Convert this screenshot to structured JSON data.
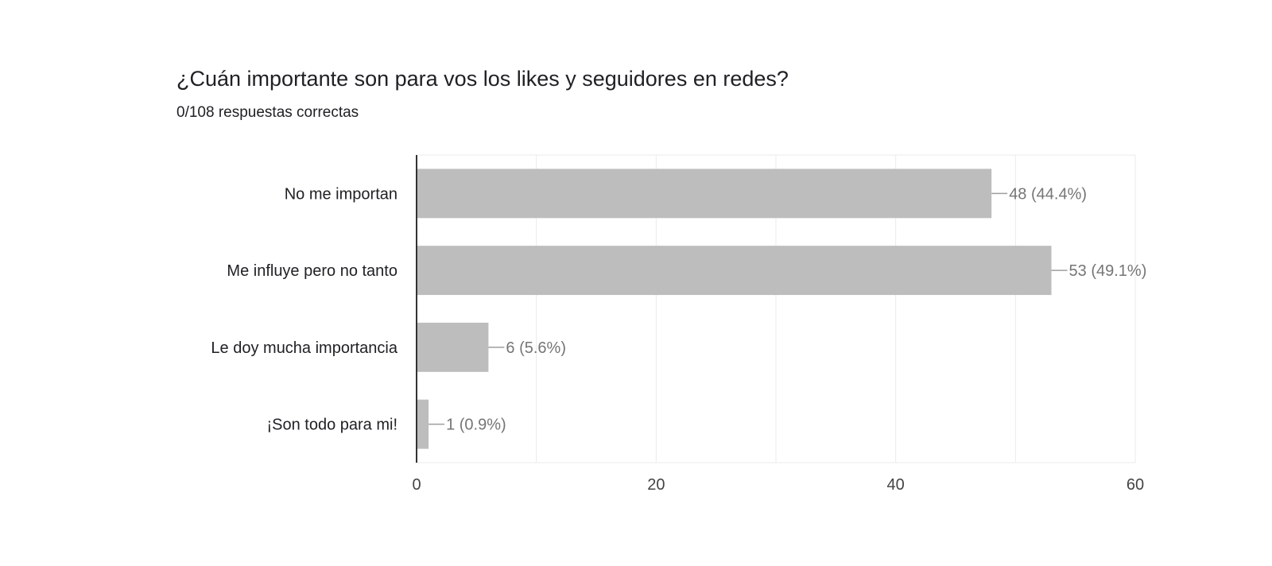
{
  "chart_data": {
    "type": "bar",
    "orientation": "horizontal",
    "title": "¿Cuán importante son para vos los likes y seguidores en redes?",
    "subtitle": "0/108 respuestas correctas",
    "categories": [
      "No me importan",
      "Me influye pero no tanto",
      "Le doy mucha importancia",
      "¡Son todo para mi!"
    ],
    "values": [
      48,
      53,
      6,
      1
    ],
    "value_labels": [
      "48 (44.4%)",
      "53 (49.1%)",
      "6 (5.6%)",
      "1 (0.9%)"
    ],
    "xlim": [
      0,
      60
    ],
    "xticks": [
      0,
      20,
      40,
      60
    ],
    "grid": true,
    "colors": {
      "bar": "#bdbdbd",
      "grid": "#ebebeb",
      "axis": "#333333",
      "leader": "#9e9e9e"
    }
  }
}
